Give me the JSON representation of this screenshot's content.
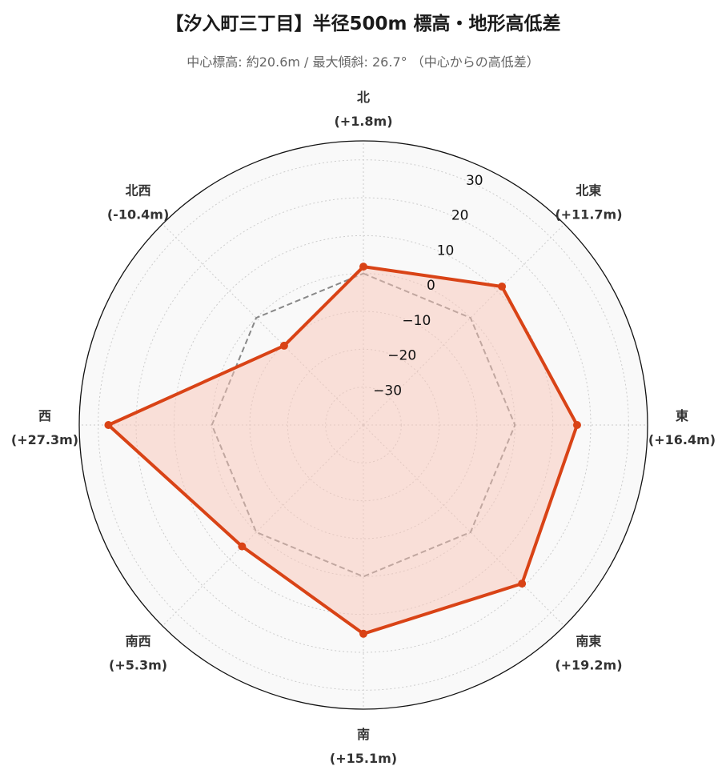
{
  "title": "【汐入町三丁目】半径500m 標高・地形高低差",
  "subtitle": "中心標高: 約20.6m / 最大傾斜: 26.7° （中心からの高低差）",
  "chart_data": {
    "type": "radar",
    "directions": [
      "北",
      "北東",
      "東",
      "南東",
      "南",
      "南西",
      "西",
      "北西"
    ],
    "direction_labels": [
      "(+1.8m)",
      "(+11.7m)",
      "(+16.4m)",
      "(+19.2m)",
      "(+15.1m)",
      "(+5.3m)",
      "(+27.3m)",
      "(-10.4m)"
    ],
    "series": [
      {
        "values": [
          1.8,
          11.7,
          16.4,
          19.2,
          15.1,
          5.3,
          27.3,
          -10.4
        ],
        "color": "#d94316",
        "fill": "#f9c6b7"
      }
    ],
    "reference_value": 0,
    "reference_color": "#888888",
    "rlim": [
      -40,
      35
    ],
    "rticks": [
      -30,
      -20,
      -10,
      0,
      10,
      20,
      30
    ],
    "rtick_labels": [
      "−30",
      "−20",
      "−10",
      "0",
      "10",
      "20",
      "30"
    ],
    "grid": true,
    "background": "#f9f9f9"
  }
}
